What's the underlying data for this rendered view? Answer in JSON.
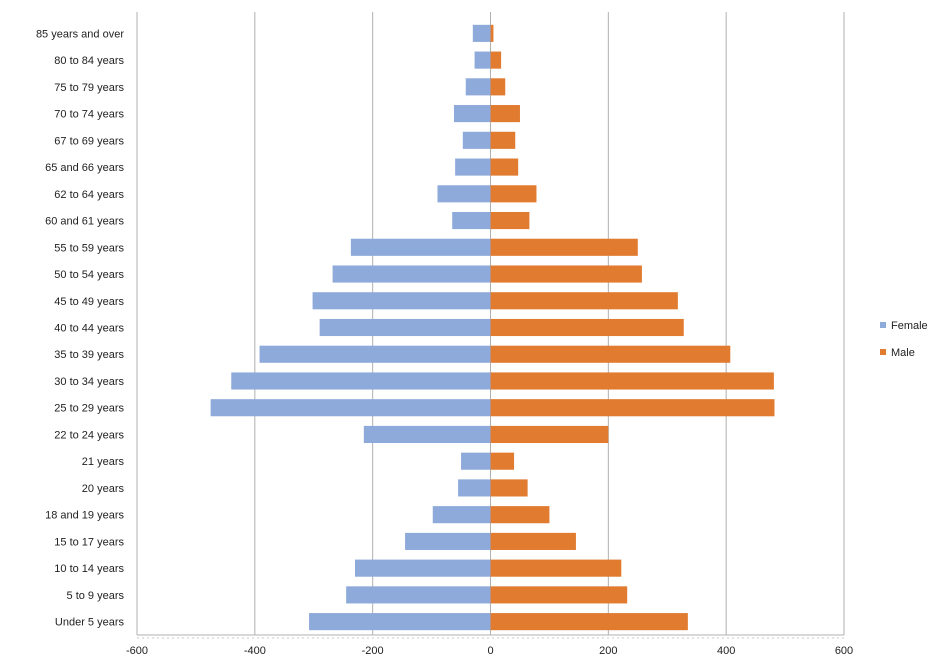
{
  "chart_data": {
    "type": "bar",
    "orientation": "horizontal",
    "layout": "population-pyramid",
    "categories": [
      "85 years and over",
      "80 to 84 years",
      "75 to 79 years",
      "70 to 74 years",
      "67 to 69 years",
      "65 and 66 years",
      "62 to 64 years",
      "60 and 61 years",
      "55 to 59 years",
      "50 to 54 years",
      "45 to 49 years",
      "40 to 44 years",
      "35 to 39 years",
      "30 to 34 years",
      "25 to 29 years",
      "22 to 24 years",
      "21 years",
      "20 years",
      "18 and 19 years",
      "15 to 17 years",
      "10 to 14 years",
      "5 to 9 years",
      "Under 5 years"
    ],
    "series": [
      {
        "name": "Female",
        "color": "#8eaadb",
        "values": [
          -30,
          -27,
          -42,
          -62,
          -47,
          -60,
          -90,
          -65,
          -237,
          -268,
          -302,
          -290,
          -392,
          -440,
          -475,
          -215,
          -50,
          -55,
          -98,
          -145,
          -230,
          -245,
          -308
        ]
      },
      {
        "name": "Male",
        "color": "#e07b30",
        "values": [
          5,
          18,
          25,
          50,
          42,
          47,
          78,
          66,
          250,
          257,
          318,
          328,
          407,
          481,
          482,
          200,
          40,
          63,
          100,
          145,
          222,
          232,
          335
        ]
      }
    ],
    "x_ticks": [
      -600,
      -400,
      -200,
      0,
      200,
      400,
      600
    ],
    "xlim": [
      -600,
      600
    ],
    "grid": "vertical",
    "legend": {
      "position": "right",
      "entries": [
        "Female",
        "Male"
      ]
    },
    "title": "",
    "xlabel": "",
    "ylabel": ""
  }
}
